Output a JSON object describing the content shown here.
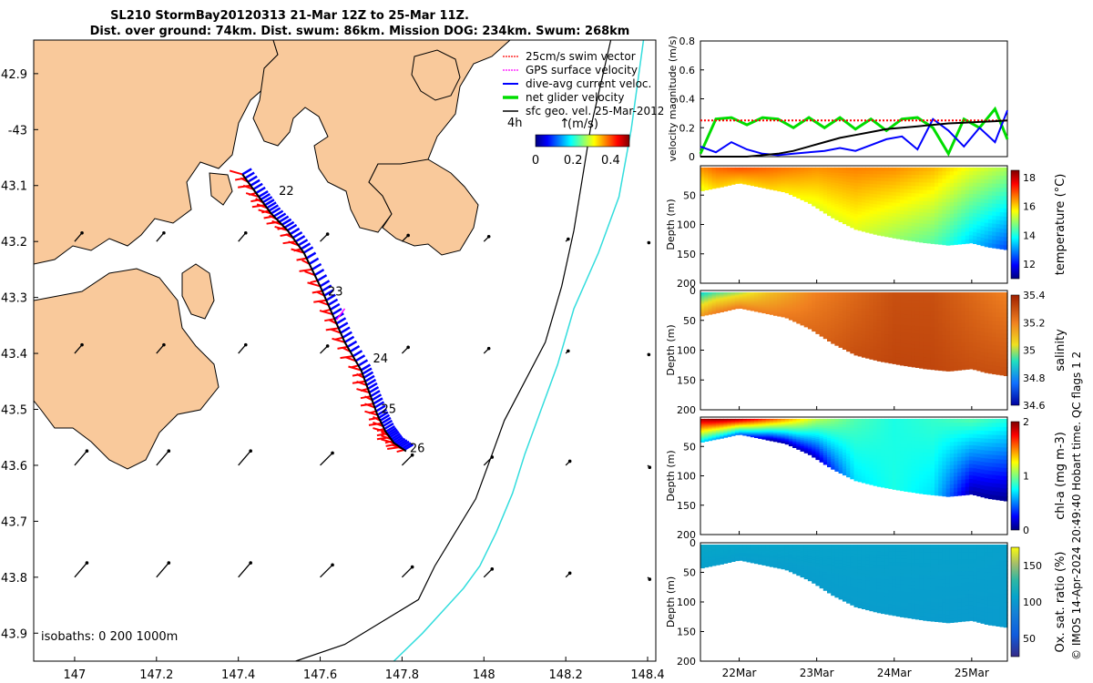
{
  "title": {
    "line1": "SL210 StormBay20120313 21-Mar 12Z to 25-Mar 11Z.",
    "line2": "Dist. over ground: 74km. Dist. swum: 86km. Mission DOG: 234km. Swum: 268km"
  },
  "credit": "© IMOS 14-Apr-2024 20:49:40 Hobart time. QC flags 1  2",
  "colors": {
    "land": "#f9c99b",
    "coast": "#000000",
    "isobath200": "#000000",
    "isobath1000": "#33dddd",
    "track": "#000000",
    "swim": "#ff0000",
    "gps": "#ff00ff",
    "dive": "#0000ff",
    "net": "#00dd00",
    "sfc": "#000000"
  },
  "chart_data": [
    {
      "id": "map",
      "type": "scatter",
      "title": "",
      "xlabel": "",
      "ylabel": "",
      "xlim": [
        146.9,
        148.42
      ],
      "ylim": [
        -43.95,
        -42.84
      ],
      "xticks": [
        147,
        147.2,
        147.4,
        147.6,
        147.8,
        148,
        148.2,
        148.4
      ],
      "xtick_labels": [
        "147",
        "147.2",
        "147.4",
        "147.6",
        "147.8",
        "148",
        "148.2",
        "148.4"
      ],
      "yticks": [
        -42.9,
        -43,
        -43.1,
        -43.2,
        -43.3,
        -43.4,
        -43.5,
        -43.6,
        -43.7,
        -43.8,
        -43.9
      ],
      "ytick_labels": [
        "42.9",
        "-43",
        "43.1",
        "43.2",
        "43.3",
        "43.4",
        "43.5",
        "43.6",
        "43.7",
        "43.8",
        "43.9"
      ],
      "legend": {
        "placement": "top-right",
        "entries": [
          "25cm/s swim vector",
          "GPS surface velocity",
          "dive-avg current veloc.",
          "net glider velocity",
          "sfc geo. vel. 25-Mar-2012"
        ],
        "interval": "4h"
      },
      "colorbar": {
        "label": "(m/s)",
        "ticks": [
          0,
          0.2,
          0.4
        ],
        "tick_labels": [
          "0",
          "0.2",
          "0.4"
        ],
        "range": [
          0,
          0.5
        ]
      },
      "isobath_label": "isobaths: 0   200  1000m",
      "track": {
        "lon": [
          147.41,
          147.45,
          147.48,
          147.52,
          147.56,
          147.6,
          147.63,
          147.66,
          147.7,
          147.72,
          147.74,
          147.76,
          147.78,
          147.81
        ],
        "lat": [
          -43.08,
          -43.12,
          -43.15,
          -43.18,
          -43.22,
          -43.28,
          -43.33,
          -43.38,
          -43.43,
          -43.47,
          -43.51,
          -43.54,
          -43.56,
          -43.575
        ]
      },
      "day_labels": [
        {
          "text": "22",
          "lon": 147.49,
          "lat": -43.11
        },
        {
          "text": "23",
          "lon": 147.61,
          "lat": -43.29
        },
        {
          "text": "24",
          "lon": 147.72,
          "lat": -43.41
        },
        {
          "text": "25",
          "lon": 147.74,
          "lat": -43.5
        },
        {
          "text": "26",
          "lon": 147.81,
          "lat": -43.57
        }
      ],
      "isobath_200": {
        "lon": [
          148.31,
          148.26,
          148.22,
          148.19,
          148.15,
          148.1,
          148.05,
          148.02,
          147.98,
          147.93,
          147.88,
          147.84,
          147.75,
          147.66,
          147.54
        ],
        "lat": [
          -42.84,
          -43.0,
          -43.18,
          -43.28,
          -43.38,
          -43.45,
          -43.52,
          -43.58,
          -43.66,
          -43.72,
          -43.78,
          -43.84,
          -43.88,
          -43.92,
          -43.95
        ]
      },
      "isobath_1000": {
        "lon": [
          148.39,
          148.36,
          148.33,
          148.28,
          148.22,
          148.18,
          148.14,
          148.1,
          148.07,
          148.03,
          147.99,
          147.95,
          147.9,
          147.85,
          147.78
        ],
        "lat": [
          -42.84,
          -43.0,
          -43.12,
          -43.22,
          -43.32,
          -43.42,
          -43.5,
          -43.58,
          -43.65,
          -43.72,
          -43.78,
          -43.82,
          -43.86,
          -43.9,
          -43.95
        ]
      },
      "sfc_vectors": {
        "u": [
          0.3,
          0.3,
          0.3,
          0.3,
          0.25,
          0.2,
          0.1,
          0.05,
          0.02
        ],
        "v": [
          0.35,
          0.35,
          0.35,
          0.3,
          0.25,
          0.2,
          0.1,
          -0.05,
          -0.1
        ],
        "grid_lon": [
          147.0,
          147.2,
          147.4,
          147.6,
          147.8,
          148.0,
          148.2,
          148.4
        ],
        "grid_lat": [
          -43.2,
          -43.4,
          -43.6,
          -43.8
        ]
      }
    },
    {
      "id": "velocity",
      "type": "line",
      "title": "",
      "xlabel": "",
      "ylabel": "velocity magnitude (m/s)",
      "xlim": [
        21.5,
        25.46
      ],
      "ylim": [
        0,
        0.8
      ],
      "yticks": [
        0,
        0.2,
        0.4,
        0.6,
        0.8
      ],
      "ytick_labels": [
        "0",
        "0.2",
        "0.4",
        "0.6",
        "0.8"
      ],
      "x": [
        21.5,
        21.7,
        21.9,
        22.1,
        22.3,
        22.5,
        22.7,
        22.9,
        23.1,
        23.3,
        23.5,
        23.7,
        23.9,
        24.1,
        24.3,
        24.5,
        24.7,
        24.9,
        25.1,
        25.3,
        25.46
      ],
      "series": [
        {
          "name": "net glider velocity",
          "color": "#00dd00",
          "values": [
            0.02,
            0.26,
            0.27,
            0.22,
            0.27,
            0.26,
            0.2,
            0.27,
            0.2,
            0.27,
            0.19,
            0.26,
            0.18,
            0.26,
            0.27,
            0.2,
            0.02,
            0.26,
            0.2,
            0.33,
            0.12
          ]
        },
        {
          "name": "dive-avg current veloc.",
          "color": "#0000ff",
          "values": [
            0.07,
            0.03,
            0.1,
            0.05,
            0.02,
            0.01,
            0.02,
            0.03,
            0.04,
            0.06,
            0.04,
            0.08,
            0.12,
            0.14,
            0.05,
            0.26,
            0.18,
            0.07,
            0.2,
            0.1,
            0.32
          ]
        },
        {
          "name": "25cm/s swim vector",
          "color": "#ff0000",
          "values": [
            0.25,
            0.25,
            0.25,
            0.25,
            0.25,
            0.25,
            0.25,
            0.25,
            0.25,
            0.25,
            0.25,
            0.25,
            0.25,
            0.25,
            0.25,
            0.25,
            0.25,
            0.25,
            0.25,
            0.25,
            0.25
          ]
        },
        {
          "name": "sfc geo. vel. 25-Mar-2012",
          "color": "#000000",
          "values": [
            0.0,
            0.0,
            0.0,
            0.0,
            0.01,
            0.02,
            0.04,
            0.07,
            0.1,
            0.13,
            0.15,
            0.17,
            0.19,
            0.2,
            0.21,
            0.22,
            0.23,
            0.235,
            0.24,
            0.245,
            0.25
          ]
        }
      ]
    },
    {
      "id": "temperature",
      "type": "heatmap",
      "ylabel": "Depth (m)",
      "clabel": "temperature (°C)",
      "xlim": [
        21.5,
        25.46
      ],
      "ylim": [
        200,
        0
      ],
      "yticks": [
        50,
        100,
        150,
        200
      ],
      "ytick_labels": [
        "50",
        "100",
        "150",
        "200"
      ],
      "crange": [
        11,
        18.5
      ],
      "cticks": [
        12,
        14,
        16,
        18
      ],
      "ctick_labels": [
        "12",
        "14",
        "16",
        "18"
      ],
      "bottom_x": [
        21.5,
        21.8,
        22.0,
        22.3,
        22.6,
        22.9,
        23.2,
        23.5,
        23.8,
        24.1,
        24.4,
        24.7,
        25.0,
        25.2,
        25.46
      ],
      "bottom_depth": [
        40,
        32,
        26,
        34,
        42,
        60,
        85,
        105,
        115,
        122,
        128,
        132,
        128,
        135,
        140
      ],
      "surface_x": [
        21.5,
        21.7,
        22.0,
        22.4,
        23.0,
        23.5,
        24.0,
        24.5,
        25.0,
        25.46
      ],
      "surface_value": [
        16.5,
        16.8,
        17.0,
        16.8,
        16.5,
        16.6,
        16.5,
        16.2,
        15.5,
        15.0
      ],
      "deep_value": [
        15.5,
        16.0,
        16.0,
        16.0,
        15.5,
        15.5,
        15.0,
        14.5,
        13.5,
        12.5
      ]
    },
    {
      "id": "salinity",
      "type": "heatmap",
      "ylabel": "Depth (m)",
      "clabel": "salinity",
      "xlim": [
        21.5,
        25.46
      ],
      "ylim": [
        200,
        0
      ],
      "yticks": [
        0,
        50,
        100,
        150,
        200
      ],
      "ytick_labels": [
        "0",
        "50",
        "100",
        "150",
        "200"
      ],
      "crange": [
        34.6,
        35.4
      ],
      "cticks": [
        34.6,
        34.8,
        35,
        35.2,
        35.4
      ],
      "ctick_labels": [
        "34.6",
        "34.8",
        "35",
        "35.2",
        "35.4"
      ],
      "bottom_x": [
        21.5,
        21.8,
        22.0,
        22.3,
        22.6,
        22.9,
        23.2,
        23.5,
        23.8,
        24.1,
        24.4,
        24.7,
        25.0,
        25.2,
        25.46
      ],
      "bottom_depth": [
        40,
        32,
        26,
        34,
        42,
        60,
        85,
        105,
        115,
        122,
        128,
        132,
        128,
        135,
        140
      ],
      "surface_x": [
        21.5,
        21.7,
        22.0,
        22.4,
        23.0,
        23.5,
        24.0,
        24.5,
        25.0,
        25.46
      ],
      "surface_value": [
        34.9,
        34.95,
        35.0,
        35.1,
        35.2,
        35.25,
        35.3,
        35.3,
        35.25,
        35.2
      ],
      "deep_value": [
        35.15,
        35.2,
        35.2,
        35.2,
        35.25,
        35.3,
        35.32,
        35.32,
        35.3,
        35.3
      ]
    },
    {
      "id": "chla",
      "type": "heatmap",
      "ylabel": "Depth (m)",
      "clabel": "chl-a (mg m-3)",
      "xlim": [
        21.5,
        25.46
      ],
      "ylim": [
        200,
        0
      ],
      "yticks": [
        50,
        100,
        150,
        200
      ],
      "ytick_labels": [
        "50",
        "100",
        "150",
        "200"
      ],
      "crange": [
        0,
        2
      ],
      "cticks": [
        0,
        1,
        2
      ],
      "ctick_labels": [
        "0",
        "1",
        "2"
      ],
      "bottom_x": [
        21.5,
        21.8,
        22.0,
        22.3,
        22.6,
        22.9,
        23.2,
        23.5,
        23.8,
        24.1,
        24.4,
        24.7,
        25.0,
        25.2,
        25.46
      ],
      "bottom_depth": [
        40,
        32,
        26,
        34,
        42,
        60,
        85,
        105,
        115,
        122,
        128,
        132,
        128,
        135,
        140
      ],
      "surface_x": [
        21.5,
        21.7,
        22.0,
        22.4,
        23.0,
        23.5,
        24.0,
        24.5,
        25.0,
        25.46
      ],
      "surface_value": [
        1.9,
        1.95,
        1.9,
        1.6,
        1.1,
        0.9,
        0.8,
        0.85,
        0.9,
        0.8
      ],
      "deep_value": [
        0.7,
        0.6,
        0.5,
        0.1,
        0.15,
        0.7,
        0.8,
        0.7,
        0.1,
        0.05
      ]
    },
    {
      "id": "oxygen",
      "type": "heatmap",
      "ylabel": "Depth (m)",
      "clabel": "Ox. sat. ratio (%)",
      "xlim": [
        21.5,
        25.46
      ],
      "ylim": [
        200,
        0
      ],
      "yticks": [
        0,
        50,
        100,
        150,
        200
      ],
      "ytick_labels": [
        "0",
        "50",
        "100",
        "150",
        "200"
      ],
      "crange": [
        25,
        175
      ],
      "cticks": [
        50,
        100,
        150
      ],
      "ctick_labels": [
        "50",
        "100",
        "150"
      ],
      "bottom_x": [
        21.5,
        21.8,
        22.0,
        22.3,
        22.6,
        22.9,
        23.2,
        23.5,
        23.8,
        24.1,
        24.4,
        24.7,
        25.0,
        25.2,
        25.46
      ],
      "bottom_depth": [
        40,
        32,
        26,
        34,
        42,
        60,
        85,
        105,
        115,
        122,
        128,
        132,
        128,
        135,
        140
      ],
      "surface_x": [
        21.5,
        22.0,
        23.0,
        24.0,
        25.0,
        25.46
      ],
      "surface_value": [
        110,
        108,
        107,
        106,
        106,
        105
      ],
      "deep_value": [
        105,
        104,
        103,
        103,
        102,
        102
      ]
    }
  ],
  "time_axis": {
    "ticks": [
      22,
      23,
      24,
      25
    ],
    "tick_labels": [
      "22Mar",
      "23Mar",
      "24Mar",
      "25Mar"
    ]
  }
}
